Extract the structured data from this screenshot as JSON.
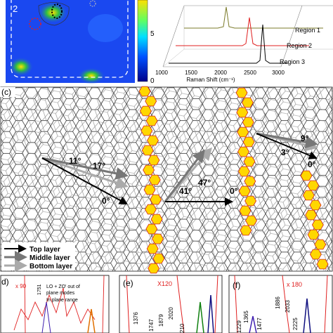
{
  "panel_a": {
    "label": "2",
    "colorbar_ticks": [
      "5",
      "0"
    ]
  },
  "panel_b": {
    "x_ticks": [
      "1000",
      "1500",
      "2000",
      "2500",
      "3000"
    ],
    "x_label": "Raman Shift (cm⁻¹)",
    "regions": [
      "Region 1",
      "Region 2",
      "Region 3"
    ]
  },
  "panel_c": {
    "label": "(c)",
    "angles": [
      "11°",
      "17°",
      "0°",
      "41°",
      "47°",
      "0°",
      "9°",
      "3°",
      "0°"
    ],
    "legend": [
      "Top layer",
      "Middle layer",
      "Bottom layer"
    ]
  },
  "panel_d": {
    "label": "d)",
    "scale": "x 90",
    "peak": "1751",
    "notes": [
      "LO + ZO' out of",
      "plane modes",
      "In plane range"
    ]
  },
  "panel_e": {
    "label": "(e)",
    "scale": "X120",
    "peaks": [
      "1376",
      "1747",
      "1879",
      "2020",
      "210"
    ]
  },
  "panel_f": {
    "label": "(f)",
    "scale": "x 180",
    "peaks": [
      "1229",
      "1365",
      "1477",
      "1886",
      "2033",
      "2225"
    ]
  }
}
